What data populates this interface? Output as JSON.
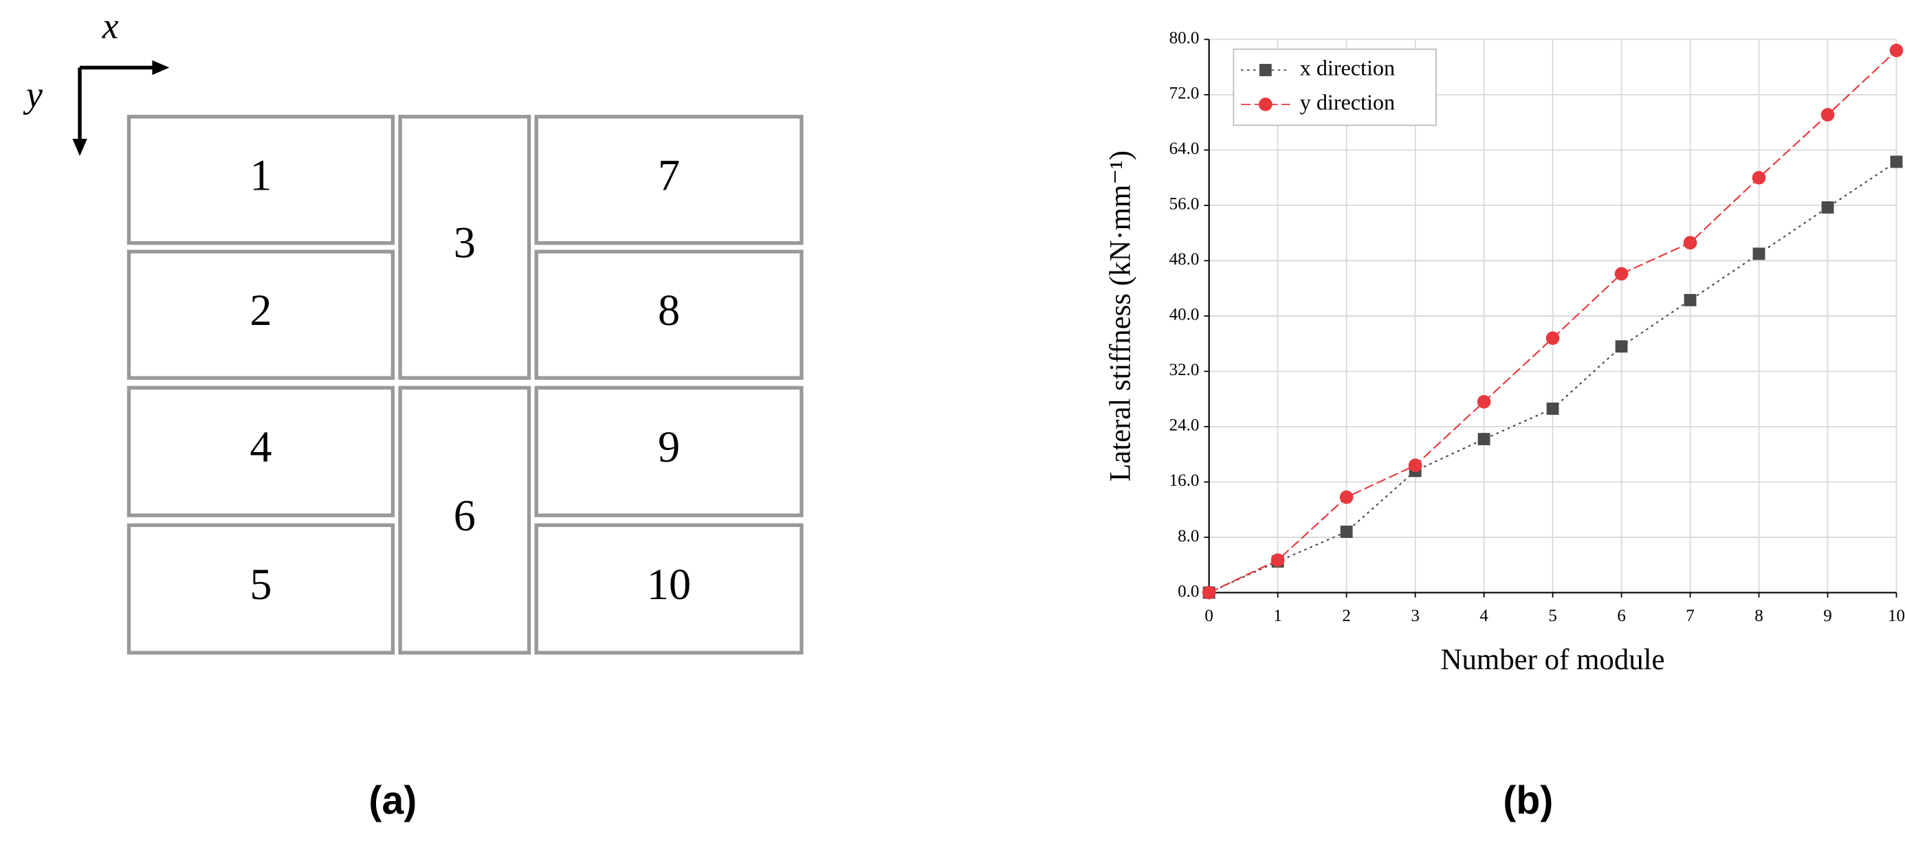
{
  "diagram": {
    "axis_x": "x",
    "axis_y": "y",
    "modules": [
      "1",
      "2",
      "3",
      "4",
      "5",
      "6",
      "7",
      "8",
      "9",
      "10"
    ]
  },
  "panel_labels": [
    "(a)",
    "(b)"
  ],
  "chart_data": {
    "type": "line",
    "x_label": "Number of module",
    "y_label": "Lateral stiffness (kN·mm⁻¹)",
    "x": [
      0,
      1,
      2,
      3,
      4,
      5,
      6,
      7,
      8,
      9,
      10
    ],
    "series": [
      {
        "name": "x direction",
        "color": "#4a4a4a",
        "marker": "square",
        "dash": "2,3",
        "values": [
          0,
          4.5,
          8.8,
          17.6,
          22.2,
          26.6,
          35.6,
          42.3,
          49.0,
          55.7,
          62.3
        ]
      },
      {
        "name": "y direction",
        "color": "#e8383d",
        "marker": "circle",
        "dash": "8,3",
        "values": [
          0,
          4.7,
          13.8,
          18.4,
          27.6,
          36.8,
          46.1,
          50.6,
          60.0,
          69.1,
          78.4
        ]
      }
    ],
    "xlim": [
      0,
      10
    ],
    "xticks": [
      0,
      1,
      2,
      3,
      4,
      5,
      6,
      7,
      8,
      9,
      10
    ],
    "ylim": [
      0,
      80
    ],
    "yticks": [
      {
        "value": 0,
        "label": "0.0"
      },
      {
        "value": 8,
        "label": "8.0"
      },
      {
        "value": 16,
        "label": "16.0"
      },
      {
        "value": 24,
        "label": "24.0"
      },
      {
        "value": 32,
        "label": "32.0"
      },
      {
        "value": 40,
        "label": "40.0"
      },
      {
        "value": 48,
        "label": "48.0"
      },
      {
        "value": 56,
        "label": "56.0"
      },
      {
        "value": 64,
        "label": "64.0"
      },
      {
        "value": 72,
        "label": "72.0"
      },
      {
        "value": 80,
        "label": "80.0"
      }
    ],
    "grid": true,
    "legend": "upper left"
  }
}
